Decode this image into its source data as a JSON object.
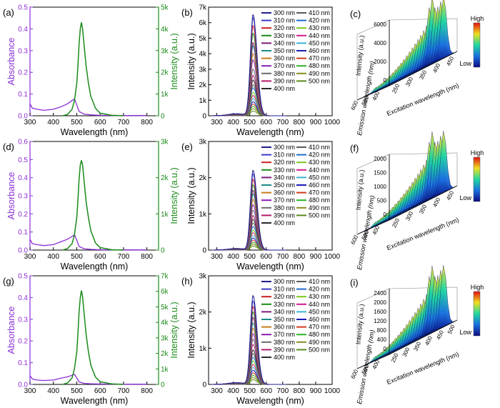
{
  "chart_data": [
    {
      "id": "a",
      "type": "line",
      "panel_label": "(a)",
      "xlabel": "Wavelength (nm)",
      "ylabel_left": "Absorbance",
      "ylabel_right": "Intensity (a.u.)",
      "xlim": [
        300,
        850
      ],
      "xticks": [
        "300",
        "400",
        "500",
        "600",
        "700",
        "800"
      ],
      "ylim_left": [
        0,
        0.5
      ],
      "yticks_left": [
        "0.0",
        "0.1",
        "0.2",
        "0.3",
        "0.4",
        "0.5"
      ],
      "ylim_right": [
        0,
        5000
      ],
      "yticks_right": [
        "0",
        "1k",
        "2k",
        "3k",
        "4k",
        "5k"
      ],
      "absorbance": {
        "color": "#8b2fd6",
        "x": [
          300,
          310,
          330,
          360,
          400,
          430,
          460,
          480,
          490,
          500,
          510,
          530,
          560,
          600,
          700,
          800
        ],
        "y": [
          0.055,
          0.035,
          0.03,
          0.025,
          0.03,
          0.04,
          0.055,
          0.07,
          0.078,
          0.05,
          0.02,
          0.008,
          0.004,
          0.002,
          0.001,
          0.001
        ]
      },
      "emission": {
        "color": "#1a8a1a",
        "x": [
          440,
          460,
          480,
          490,
          500,
          505,
          510,
          515,
          520,
          525,
          530,
          540,
          550,
          560,
          580,
          600,
          650,
          700
        ],
        "y": [
          0,
          60,
          300,
          700,
          1500,
          2300,
          3300,
          4000,
          4300,
          4000,
          3400,
          2300,
          1500,
          900,
          350,
          120,
          20,
          0
        ]
      }
    },
    {
      "id": "b",
      "type": "line",
      "panel_label": "(b)",
      "xlabel": "Wavelength (nm)",
      "ylabel": "Intensity (a.u.)",
      "xlim": [
        250,
        1000
      ],
      "xticks": [
        "300",
        "400",
        "500",
        "600",
        "700",
        "800",
        "900",
        "1000"
      ],
      "ylim": [
        0,
        7000
      ],
      "yticks": [
        "0",
        "1k",
        "2k",
        "3k",
        "4k",
        "5k",
        "6k",
        "7k"
      ],
      "peak_wavelength": 520,
      "series_names": [
        "300 nm",
        "310 nm",
        "320 nm",
        "330 nm",
        "340 nm",
        "350 nm",
        "360 nm",
        "370 nm",
        "380 nm",
        "390 nm",
        "400 nm",
        "410 nm",
        "420 nm",
        "430 nm",
        "440 nm",
        "450 nm",
        "460 nm",
        "470 nm",
        "480 nm",
        "490 nm",
        "500 nm"
      ],
      "series_peaks": [
        6500,
        6300,
        5800,
        5300,
        4700,
        4500,
        4000,
        3600,
        3000,
        2600,
        2300,
        2000,
        1800,
        1500,
        1300,
        1100,
        900,
        750,
        600,
        450,
        300
      ]
    },
    {
      "id": "c",
      "type": "3d-surface",
      "panel_label": "(c)",
      "zlabel": "Intensity (a.u.)",
      "xlabel": "Emission wavelength (nm)",
      "ylabel": "Excitation wavelength (nm)",
      "zticks": [
        "0",
        "2000",
        "4000",
        "6000"
      ],
      "emission_ticks": [
        "400",
        "500",
        "600"
      ],
      "excitation_ticks": [
        "250",
        "300",
        "350",
        "400",
        "450"
      ],
      "colorbar": {
        "high": "High",
        "low": "Low"
      }
    },
    {
      "id": "d",
      "type": "line",
      "panel_label": "(d)",
      "xlabel": "Wavelength (nm)",
      "ylabel_left": "Absorbance",
      "ylabel_right": "Intensity (a.u.)",
      "xlim": [
        300,
        850
      ],
      "xticks": [
        "300",
        "400",
        "500",
        "600",
        "700",
        "800"
      ],
      "ylim_left": [
        0,
        0.6
      ],
      "yticks_left": [
        "0.0",
        "0.1",
        "0.2",
        "0.3",
        "0.4",
        "0.5",
        "0.6"
      ],
      "ylim_right": [
        0,
        3000
      ],
      "yticks_right": [
        "0",
        "1k",
        "2k",
        "3k"
      ],
      "absorbance": {
        "color": "#8b2fd6",
        "x": [
          300,
          310,
          330,
          360,
          400,
          430,
          460,
          480,
          490,
          500,
          510,
          530,
          560,
          600,
          700,
          800
        ],
        "y": [
          0.06,
          0.035,
          0.03,
          0.025,
          0.03,
          0.045,
          0.06,
          0.075,
          0.085,
          0.055,
          0.02,
          0.008,
          0.004,
          0.002,
          0.001,
          0.001
        ]
      },
      "emission": {
        "color": "#1a8a1a",
        "x": [
          440,
          460,
          480,
          490,
          500,
          505,
          510,
          515,
          520,
          525,
          530,
          540,
          550,
          560,
          580,
          600,
          650,
          700
        ],
        "y": [
          0,
          40,
          180,
          420,
          900,
          1380,
          1950,
          2350,
          2480,
          2350,
          2000,
          1350,
          900,
          540,
          200,
          70,
          10,
          0
        ]
      }
    },
    {
      "id": "e",
      "type": "line",
      "panel_label": "(e)",
      "xlabel": "Wavelength (nm)",
      "ylabel": "Intensity (a.u.)",
      "xlim": [
        250,
        1000
      ],
      "xticks": [
        "300",
        "400",
        "500",
        "600",
        "700",
        "800",
        "900",
        "1000"
      ],
      "ylim": [
        0,
        3000
      ],
      "yticks": [
        "0",
        "1k",
        "2k",
        "3k"
      ],
      "peak_wavelength": 520,
      "series_names": [
        "300 nm",
        "310 nm",
        "320 nm",
        "330 nm",
        "340 nm",
        "350 nm",
        "360 nm",
        "370 nm",
        "380 nm",
        "390 nm",
        "400 nm",
        "410 nm",
        "420 nm",
        "430 nm",
        "440 nm",
        "450 nm",
        "460 nm",
        "470 nm",
        "480 nm",
        "490 nm",
        "500 nm"
      ],
      "series_peaks": [
        2200,
        2100,
        1950,
        1800,
        1650,
        1550,
        1400,
        1250,
        1100,
        950,
        850,
        750,
        650,
        550,
        480,
        400,
        330,
        270,
        210,
        160,
        110
      ]
    },
    {
      "id": "f",
      "type": "3d-surface",
      "panel_label": "(f)",
      "zlabel": "Intensity (a.u.)",
      "xlabel": "Emission wavelength (nm)",
      "ylabel": "Excitation wavelength (nm)",
      "zticks": [
        "0",
        "500",
        "1000",
        "1500",
        "2000"
      ],
      "emission_ticks": [
        "400",
        "500",
        "600"
      ],
      "excitation_ticks": [
        "250",
        "300",
        "350",
        "400",
        "450"
      ],
      "colorbar": {
        "high": "High",
        "low": "Low"
      }
    },
    {
      "id": "g",
      "type": "line",
      "panel_label": "(g)",
      "xlabel": "Wavelength (nm)",
      "ylabel_left": "Absorbance",
      "ylabel_right": "Intensity (a.u.)",
      "xlim": [
        300,
        850
      ],
      "xticks": [
        "300",
        "400",
        "500",
        "600",
        "700",
        "800"
      ],
      "ylim_left": [
        0,
        0.5
      ],
      "yticks_left": [
        "0.0",
        "0.1",
        "0.2",
        "0.3",
        "0.4",
        "0.5"
      ],
      "ylim_right": [
        0,
        7000
      ],
      "yticks_right": [
        "0",
        "1k",
        "2k",
        "3k",
        "4k",
        "5k",
        "6k",
        "7k"
      ],
      "absorbance": {
        "color": "#8b2fd6",
        "x": [
          300,
          310,
          330,
          360,
          400,
          430,
          460,
          480,
          490,
          500,
          510,
          530,
          560,
          600,
          700,
          800
        ],
        "y": [
          0.04,
          0.025,
          0.02,
          0.018,
          0.02,
          0.028,
          0.035,
          0.042,
          0.046,
          0.03,
          0.012,
          0.005,
          0.003,
          0.002,
          0.001,
          0.001
        ]
      },
      "emission": {
        "color": "#1a8a1a",
        "x": [
          440,
          460,
          480,
          490,
          500,
          505,
          510,
          515,
          520,
          525,
          530,
          540,
          550,
          560,
          580,
          600,
          650,
          700
        ],
        "y": [
          0,
          90,
          420,
          1000,
          2100,
          3250,
          4650,
          5600,
          6050,
          5650,
          4800,
          3250,
          2100,
          1250,
          480,
          170,
          30,
          0
        ]
      }
    },
    {
      "id": "h",
      "type": "line",
      "panel_label": "(h)",
      "xlabel": "Wavelength (nm)",
      "ylabel": "Intensity (a.u.)",
      "xlim": [
        250,
        1000
      ],
      "xticks": [
        "300",
        "400",
        "500",
        "600",
        "700",
        "800",
        "900",
        "1000"
      ],
      "ylim": [
        0,
        3000
      ],
      "yticks": [
        "0",
        "1k",
        "2k",
        "3k"
      ],
      "peak_wavelength": 520,
      "series_names": [
        "300 nm",
        "310 nm",
        "320 nm",
        "330 nm",
        "340 nm",
        "350 nm",
        "360 nm",
        "370 nm",
        "380 nm",
        "390 nm",
        "400 nm",
        "410 nm",
        "420 nm",
        "430 nm",
        "440 nm",
        "450 nm",
        "460 nm",
        "470 nm",
        "480 nm",
        "490 nm",
        "500 nm"
      ],
      "series_peaks": [
        2450,
        2300,
        2150,
        2000,
        1850,
        1700,
        1550,
        1400,
        1250,
        1100,
        950,
        850,
        750,
        650,
        550,
        470,
        390,
        320,
        250,
        190,
        130
      ]
    },
    {
      "id": "i",
      "type": "3d-surface",
      "panel_label": "(i)",
      "zlabel": "Intensity (a.u.)",
      "xlabel": "Emission wavelength (nm)",
      "ylabel": "Excitation wavelength (nm)",
      "zticks": [
        "0",
        "400",
        "800",
        "1200",
        "1600",
        "2000",
        "2400"
      ],
      "emission_ticks": [
        "400",
        "500",
        "600"
      ],
      "excitation_ticks": [
        "250",
        "300",
        "350",
        "400",
        "450",
        "500"
      ],
      "colorbar": {
        "high": "High",
        "low": "Low"
      }
    }
  ],
  "legend_colors": [
    "#1f1f8f",
    "#3a3ac8",
    "#c81e1e",
    "#1a8a1a",
    "#7a1a7a",
    "#1a8a8a",
    "#c87a1a",
    "#8a1ab4",
    "#6a6a6a",
    "#b41a6a",
    "#2a2a2a",
    "#5a5a5a",
    "#1a6ad2",
    "#7ac81a",
    "#d21a8a",
    "#3ab4d2",
    "#1a1ab4",
    "#d23a1a",
    "#2ab42a",
    "#8a8a1a",
    "#5a8a1a"
  ]
}
